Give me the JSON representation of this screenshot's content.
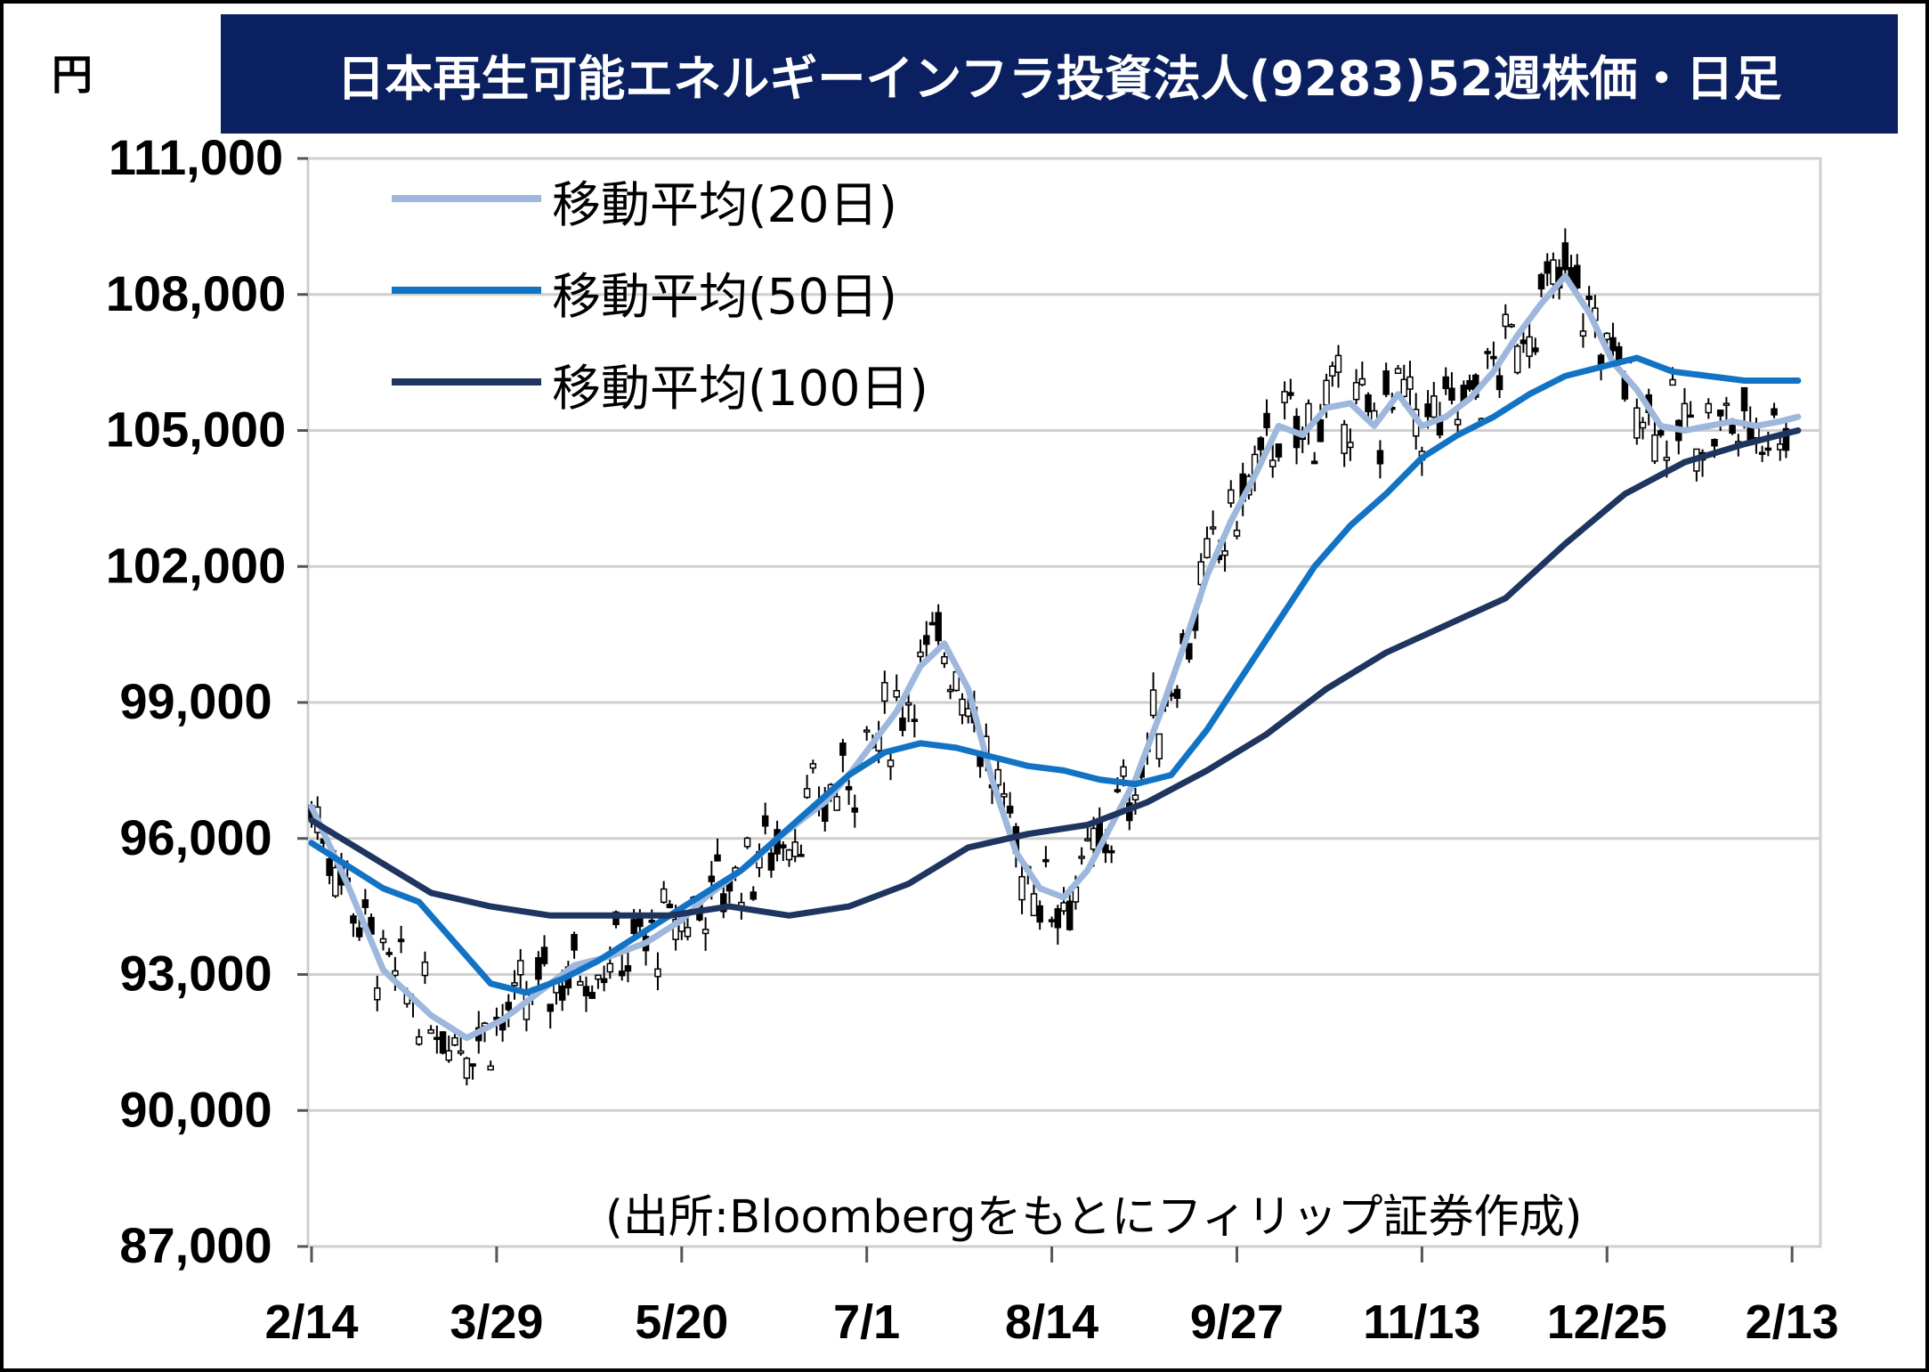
{
  "chart_data": {
    "type": "line",
    "title": "日本再生可能エネルギーインフラ投資法人(9283)52週株価・日足",
    "ylabel": "円",
    "ylim": [
      87000,
      111000
    ],
    "yticks": [
      87000,
      90000,
      93000,
      96000,
      99000,
      102000,
      105000,
      108000,
      111000
    ],
    "ytick_labels": [
      "87,000",
      "90,000",
      "93,000",
      "96,000",
      "99,000",
      "102,000",
      "105,000",
      "108,000",
      "111,000"
    ],
    "x_range": [
      0,
      252
    ],
    "xtick_positions": [
      0,
      31,
      62,
      93,
      124,
      155,
      186,
      217,
      248
    ],
    "xtick_labels": [
      "2/14",
      "3/29",
      "5/20",
      "7/1",
      "8/14",
      "9/27",
      "11/13",
      "12/25",
      "2/13"
    ],
    "grid": true,
    "legend_position": "top-left",
    "series": [
      {
        "name": "移動平均(20日)",
        "color": "#9db8dc",
        "x": [
          0,
          6,
          12,
          20,
          26,
          32,
          38,
          44,
          50,
          56,
          62,
          66,
          70,
          74,
          78,
          82,
          86,
          90,
          94,
          98,
          102,
          106,
          110,
          114,
          118,
          122,
          126,
          130,
          134,
          138,
          142,
          146,
          150,
          154,
          158,
          162,
          166,
          170,
          174,
          178,
          182,
          186,
          190,
          194,
          198,
          202,
          206,
          210,
          214,
          218,
          222,
          226,
          230,
          234,
          238,
          242,
          246,
          249
        ],
        "y": [
          96700,
          95000,
          93100,
          92100,
          91600,
          92000,
          92600,
          93200,
          93400,
          93700,
          94200,
          94700,
          95100,
          95500,
          96000,
          96400,
          96800,
          97400,
          98100,
          98800,
          99800,
          100300,
          99300,
          97300,
          95700,
          94900,
          94700,
          95300,
          96300,
          97300,
          98700,
          100200,
          101800,
          103000,
          104000,
          105100,
          104900,
          105500,
          105600,
          105100,
          105800,
          105100,
          105300,
          105700,
          106300,
          107100,
          107800,
          108400,
          107600,
          106500,
          105900,
          105100,
          105000,
          105100,
          105200,
          105100,
          105200,
          105300
        ]
      },
      {
        "name": "移動平均(50日)",
        "color": "#1273c4",
        "x": [
          0,
          6,
          12,
          18,
          24,
          30,
          36,
          42,
          48,
          54,
          60,
          66,
          72,
          78,
          84,
          90,
          96,
          102,
          108,
          114,
          120,
          126,
          132,
          138,
          144,
          150,
          156,
          162,
          168,
          174,
          180,
          186,
          192,
          198,
          204,
          210,
          216,
          222,
          228,
          234,
          240,
          246,
          249
        ],
        "y": [
          95900,
          95400,
          94900,
          94600,
          93700,
          92800,
          92600,
          92900,
          93300,
          93800,
          94300,
          94800,
          95300,
          96000,
          96700,
          97400,
          97900,
          98100,
          98000,
          97800,
          97600,
          97500,
          97300,
          97200,
          97400,
          98400,
          99600,
          100800,
          102000,
          102900,
          103600,
          104400,
          104900,
          105300,
          105800,
          106200,
          106400,
          106600,
          106300,
          106200,
          106100,
          106100,
          106100
        ]
      },
      {
        "name": "移動平均(100日)",
        "color": "#1e3560",
        "x": [
          0,
          10,
          20,
          30,
          40,
          50,
          60,
          70,
          80,
          90,
          100,
          110,
          120,
          130,
          140,
          150,
          160,
          170,
          180,
          190,
          200,
          210,
          220,
          230,
          240,
          249
        ],
        "y": [
          96400,
          95600,
          94800,
          94500,
          94300,
          94300,
          94300,
          94500,
          94300,
          94500,
          95000,
          95800,
          96100,
          96300,
          96800,
          97500,
          98300,
          99300,
          100100,
          100700,
          101300,
          102500,
          103600,
          104300,
          104700,
          105000
        ]
      }
    ]
  },
  "legend": {
    "ma20_label": "移動平均(20日)",
    "ma50_label": "移動平均(50日)",
    "ma100_label": "移動平均(100日)"
  },
  "source_note": "(出所:Bloombergをもとにフィリップ証券作成)"
}
